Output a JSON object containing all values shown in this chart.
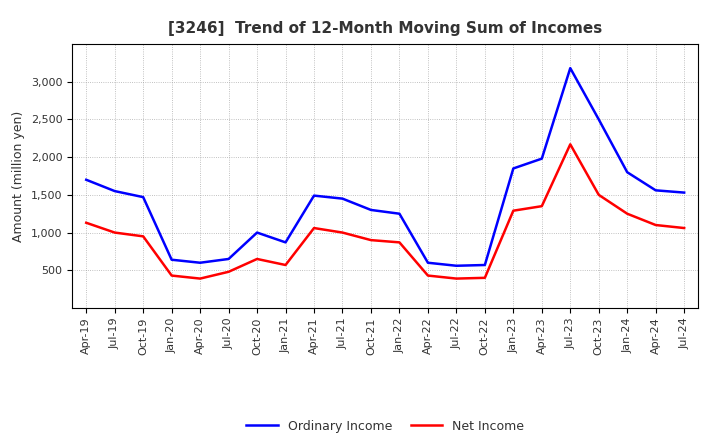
{
  "title": "[3246]  Trend of 12-Month Moving Sum of Incomes",
  "ylabel": "Amount (million yen)",
  "x_labels": [
    "Apr-19",
    "Jul-19",
    "Oct-19",
    "Jan-20",
    "Apr-20",
    "Jul-20",
    "Oct-20",
    "Jan-21",
    "Apr-21",
    "Jul-21",
    "Oct-21",
    "Jan-22",
    "Apr-22",
    "Jul-22",
    "Oct-22",
    "Jan-23",
    "Apr-23",
    "Jul-23",
    "Oct-23",
    "Jan-24",
    "Apr-24",
    "Jul-24"
  ],
  "ordinary_income": [
    1700,
    1550,
    1470,
    640,
    600,
    650,
    1000,
    870,
    1490,
    1450,
    1300,
    1250,
    600,
    560,
    570,
    1850,
    1980,
    3180,
    2500,
    1800,
    1560,
    1530
  ],
  "net_income": [
    1130,
    1000,
    950,
    430,
    390,
    480,
    650,
    570,
    1060,
    1000,
    900,
    870,
    430,
    390,
    400,
    1290,
    1350,
    2170,
    1500,
    1250,
    1100,
    1060
  ],
  "ordinary_color": "#0000FF",
  "net_color": "#FF0000",
  "ylim_min": 0,
  "ylim_max": 3500,
  "yticks": [
    500,
    1000,
    1500,
    2000,
    2500,
    3000
  ],
  "background_color": "#FFFFFF",
  "grid_color": "#999999",
  "title_color": "#333333",
  "legend_labels": [
    "Ordinary Income",
    "Net Income"
  ],
  "line_width": 1.8,
  "tick_fontsize": 8,
  "ylabel_fontsize": 9,
  "title_fontsize": 11
}
